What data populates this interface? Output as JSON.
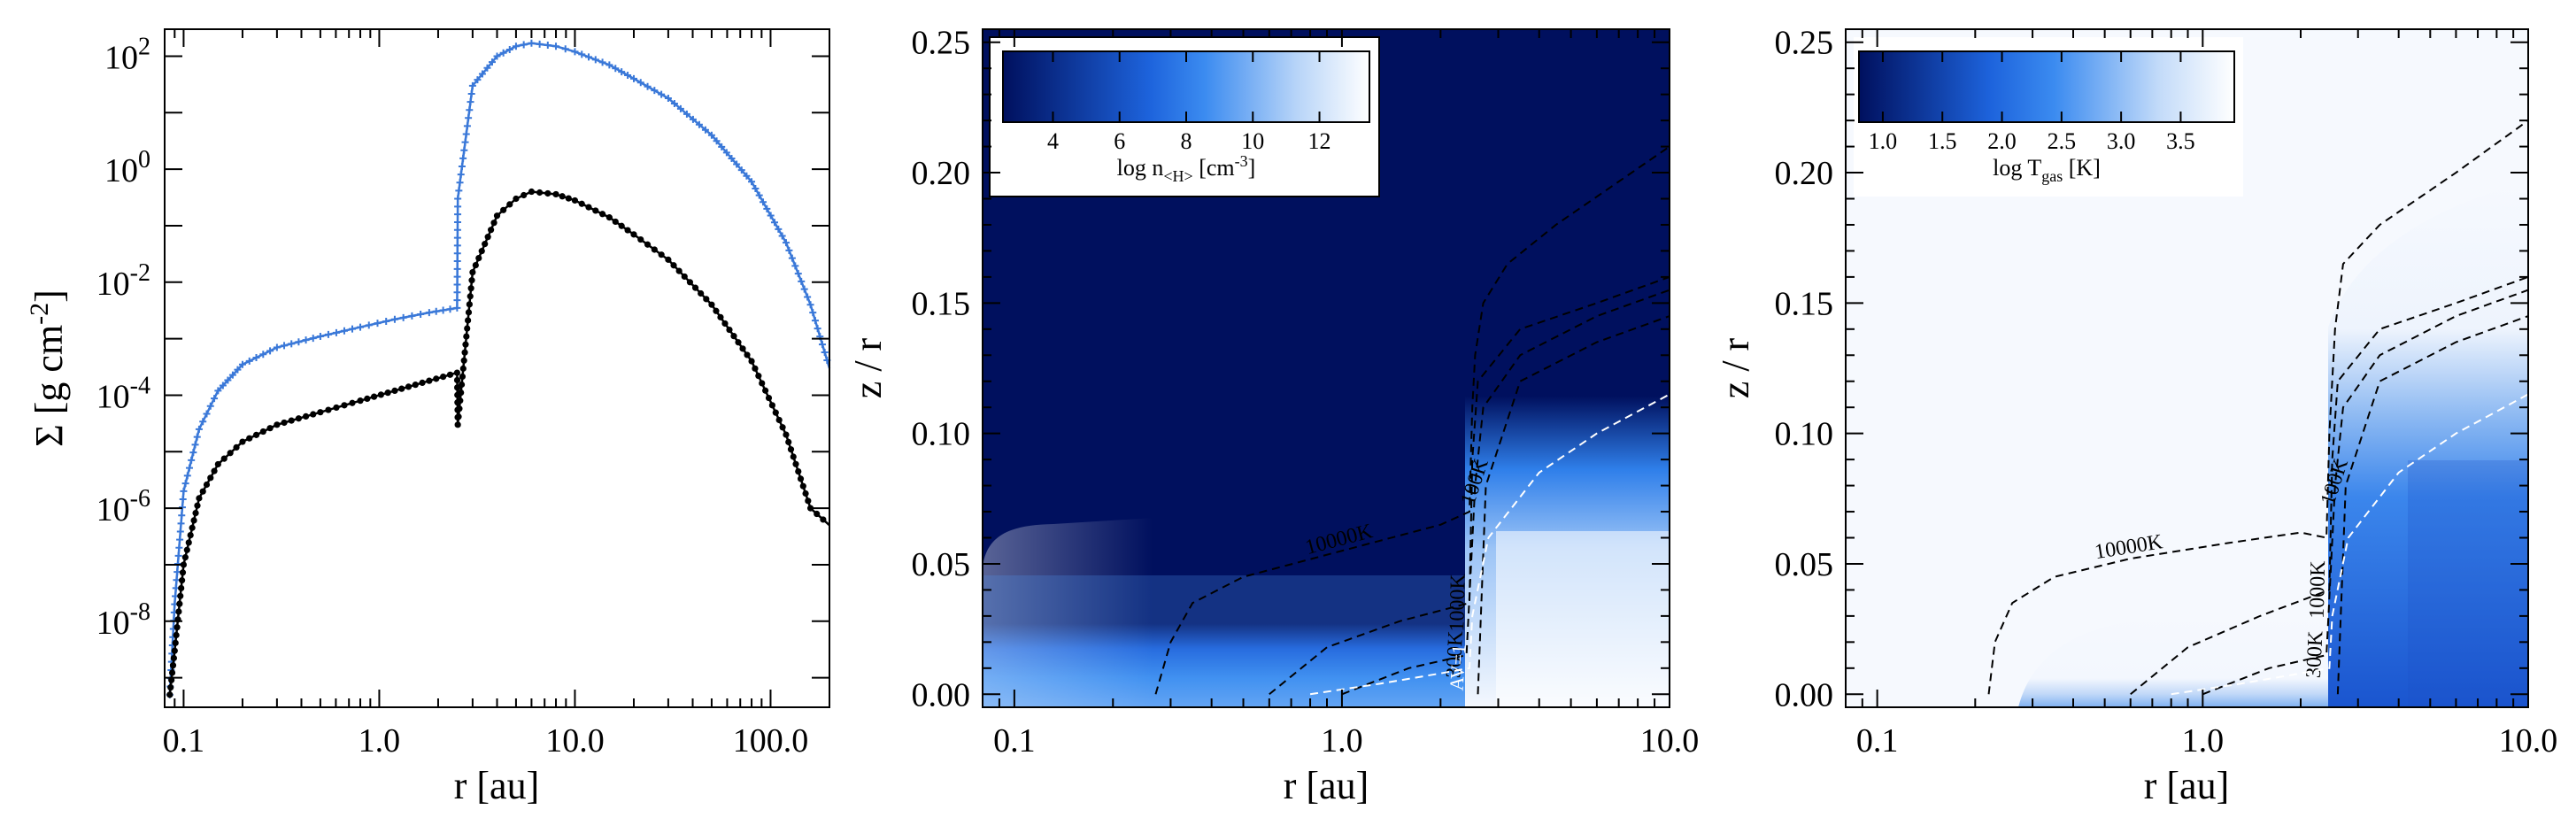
{
  "chart_data": [
    {
      "type": "line",
      "panel": "surface-density",
      "xscale": "log",
      "yscale": "log",
      "xlim": [
        0.08,
        200
      ],
      "ylim": [
        3e-10,
        300
      ],
      "xticks": [
        "0.1",
        "1.0",
        "10.0",
        "100.0"
      ],
      "xtick_values": [
        0.1,
        1.0,
        10.0,
        100.0
      ],
      "yticks": [
        {
          "base": "10",
          "exp": "2",
          "value": 100
        },
        {
          "base": "10",
          "exp": "0",
          "value": 1
        },
        {
          "base": "10",
          "exp": "-2",
          "value": 0.01
        },
        {
          "base": "10",
          "exp": "-4",
          "value": 0.0001
        },
        {
          "base": "10",
          "exp": "-6",
          "value": 1e-06
        },
        {
          "base": "10",
          "exp": "-8",
          "value": 1e-08
        }
      ],
      "xlabel": "r [au]",
      "ylabel": {
        "main": "Σ [g cm",
        "sup": "-2",
        "close": "]"
      },
      "series": [
        {
          "color": "#3a78d8",
          "marker": "plus",
          "x": [
            0.085,
            0.09,
            0.1,
            0.12,
            0.15,
            0.2,
            0.3,
            0.5,
            0.8,
            1.2,
            1.8,
            2.5,
            2.52,
            3.0,
            4.0,
            5.0,
            6.0,
            8.0,
            10.0,
            15.0,
            20.0,
            30.0,
            50.0,
            80.0,
            120.0,
            160.0,
            200.0
          ],
          "y": [
            5e-10,
            2e-08,
            2e-06,
            2.5e-05,
            0.00012,
            0.00035,
            0.0007,
            0.0011,
            0.0016,
            0.0022,
            0.0029,
            0.0035,
            0.3,
            30,
            100,
            150,
            170,
            150,
            120,
            70,
            40,
            18,
            4,
            0.6,
            0.05,
            0.004,
            0.0003
          ]
        },
        {
          "color": "#000000",
          "marker": "dot",
          "x": [
            0.085,
            0.09,
            0.1,
            0.12,
            0.15,
            0.2,
            0.3,
            0.5,
            0.8,
            1.2,
            1.8,
            2.5,
            2.52,
            3.0,
            4.0,
            5.0,
            6.0,
            8.0,
            10.0,
            15.0,
            20.0,
            30.0,
            50.0,
            80.0,
            120.0,
            160.0,
            200.0
          ],
          "y": [
            5e-10,
            3e-09,
            1e-07,
            1.5e-06,
            6e-06,
            1.5e-05,
            3e-05,
            5e-05,
            8e-05,
            0.00012,
            0.00018,
            0.00025,
            3e-05,
            0.015,
            0.15,
            0.3,
            0.4,
            0.36,
            0.28,
            0.14,
            0.07,
            0.025,
            0.004,
            0.0004,
            2e-05,
            1e-06,
            5e-07
          ]
        }
      ]
    },
    {
      "type": "heatmap",
      "panel": "density",
      "xscale": "log",
      "xlim": [
        0.08,
        10
      ],
      "ylim": [
        -0.005,
        0.255
      ],
      "xticks": [
        "0.1",
        "1.0",
        "10.0"
      ],
      "xtick_values": [
        0.1,
        1.0,
        10.0
      ],
      "yticks": [
        "0.00",
        "0.05",
        "0.10",
        "0.15",
        "0.20",
        "0.25"
      ],
      "ytick_values": [
        0.0,
        0.05,
        0.1,
        0.15,
        0.2,
        0.25
      ],
      "xlabel": "r [au]",
      "ylabel": "z / r",
      "colorbar": {
        "label_main": "log n",
        "label_sub": "<H>",
        "label_unit": " [cm",
        "label_sup": "-3",
        "label_close": "]",
        "range": [
          2.5,
          13.5
        ],
        "ticks": [
          "4",
          "6",
          "8",
          "10",
          "12"
        ],
        "tick_values": [
          4,
          6,
          8,
          10,
          12
        ]
      },
      "colors": {
        "low": "#00105e",
        "mid": "#2b80ee",
        "high": "#ffffff"
      },
      "contours": [
        {
          "label": "10000K",
          "color": "#000000",
          "x": [
            0.27,
            0.3,
            0.35,
            0.5,
            1.0,
            2.0,
            2.45,
            2.5,
            2.55,
            2.7,
            3.2,
            4.5,
            10.0
          ],
          "y": [
            0.0,
            0.02,
            0.035,
            0.045,
            0.055,
            0.065,
            0.07,
            0.11,
            0.13,
            0.15,
            0.165,
            0.18,
            0.21
          ]
        },
        {
          "label": "1000K",
          "color": "#000000",
          "x": [
            0.6,
            0.9,
            1.5,
            2.45,
            2.5,
            2.6,
            3.5,
            6.0,
            10.0
          ],
          "y": [
            0.0,
            0.018,
            0.028,
            0.035,
            0.09,
            0.12,
            0.14,
            0.15,
            0.16
          ]
        },
        {
          "label": "300K",
          "color": "#000000",
          "x": [
            1.0,
            1.6,
            2.4,
            2.55,
            2.7,
            3.5,
            6.0,
            10.0
          ],
          "y": [
            0.0,
            0.01,
            0.015,
            0.08,
            0.11,
            0.13,
            0.145,
            0.155
          ]
        },
        {
          "label": "100K",
          "color": "#000000",
          "x": [
            2.6,
            2.75,
            3.5,
            6.0,
            10.0
          ],
          "y": [
            0.0,
            0.08,
            0.12,
            0.135,
            0.145
          ]
        },
        {
          "label": "AV=1",
          "color": "#ffffff",
          "x": [
            0.8,
            1.3,
            2.0,
            2.45,
            2.5,
            2.8,
            4.0,
            6.0,
            10.0
          ],
          "y": [
            0.0,
            0.004,
            0.008,
            0.01,
            0.03,
            0.06,
            0.085,
            0.1,
            0.115
          ]
        }
      ]
    },
    {
      "type": "heatmap",
      "panel": "gas-temperature",
      "xscale": "log",
      "xlim": [
        0.08,
        10
      ],
      "ylim": [
        -0.005,
        0.255
      ],
      "xticks": [
        "0.1",
        "1.0",
        "10.0"
      ],
      "xtick_values": [
        0.1,
        1.0,
        10.0
      ],
      "yticks": [
        "0.00",
        "0.05",
        "0.10",
        "0.15",
        "0.20",
        "0.25"
      ],
      "ytick_values": [
        0.0,
        0.05,
        0.1,
        0.15,
        0.2,
        0.25
      ],
      "xlabel": "r [au]",
      "ylabel": "z / r",
      "colorbar": {
        "label_main": "log T",
        "label_sub": "gas",
        "label_unit": " [K]",
        "range": [
          0.8,
          3.95
        ],
        "ticks": [
          "1.0",
          "1.5",
          "2.0",
          "2.5",
          "3.0",
          "3.5"
        ],
        "tick_values": [
          1.0,
          1.5,
          2.0,
          2.5,
          3.0,
          3.5
        ]
      },
      "colors": {
        "low": "#00105e",
        "mid": "#2b80ee",
        "high": "#ffffff"
      },
      "contours": [
        {
          "label": "10000K",
          "color": "#000000",
          "x": [
            0.22,
            0.23,
            0.26,
            0.35,
            0.6,
            1.2,
            2.0,
            2.4,
            2.45,
            2.55,
            2.7,
            3.5,
            6.0,
            10.0
          ],
          "y": [
            0.0,
            0.02,
            0.035,
            0.045,
            0.052,
            0.058,
            0.062,
            0.06,
            0.1,
            0.14,
            0.165,
            0.18,
            0.2,
            0.22
          ]
        },
        {
          "label": "1000K",
          "color": "#000000",
          "x": [
            0.6,
            0.9,
            1.5,
            2.45,
            2.5,
            2.6,
            3.5,
            6.0,
            10.0
          ],
          "y": [
            0.0,
            0.018,
            0.03,
            0.04,
            0.09,
            0.12,
            0.14,
            0.15,
            0.16
          ]
        },
        {
          "label": "300K",
          "color": "#000000",
          "x": [
            1.0,
            1.6,
            2.4,
            2.55,
            2.7,
            3.5,
            6.0,
            10.0
          ],
          "y": [
            0.0,
            0.01,
            0.015,
            0.08,
            0.11,
            0.13,
            0.145,
            0.155
          ]
        },
        {
          "label": "100K",
          "color": "#000000",
          "x": [
            2.6,
            2.75,
            3.5,
            6.0,
            10.0
          ],
          "y": [
            0.0,
            0.08,
            0.12,
            0.135,
            0.145
          ]
        },
        {
          "label": "",
          "color": "#ffffff",
          "x": [
            0.8,
            1.3,
            2.0,
            2.45,
            2.5,
            2.8,
            4.0,
            6.0,
            10.0
          ],
          "y": [
            0.0,
            0.004,
            0.008,
            0.01,
            0.03,
            0.06,
            0.085,
            0.1,
            0.115
          ]
        }
      ]
    }
  ]
}
